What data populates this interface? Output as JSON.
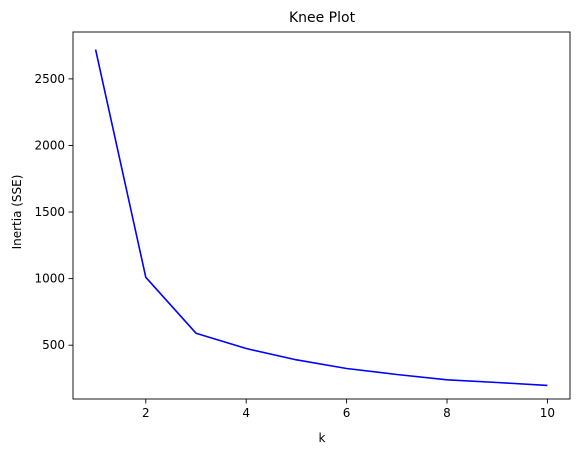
{
  "chart_data": {
    "type": "line",
    "title": "Knee Plot",
    "xlabel": "k",
    "ylabel": "Inertia (SSE)",
    "xlim": [
      0.55,
      10.45
    ],
    "ylim": [
      96,
      2852
    ],
    "xticks": [
      2,
      4,
      6,
      8,
      10
    ],
    "yticks": [
      500,
      1000,
      1500,
      2000,
      2500
    ],
    "grid": false,
    "series": [
      {
        "color": "#0000ff",
        "x": [
          1,
          2,
          3,
          4,
          5,
          6,
          7,
          8,
          9,
          10
        ],
        "y": [
          2720,
          1010,
          590,
          475,
          390,
          325,
          280,
          240,
          220,
          198
        ]
      }
    ]
  }
}
